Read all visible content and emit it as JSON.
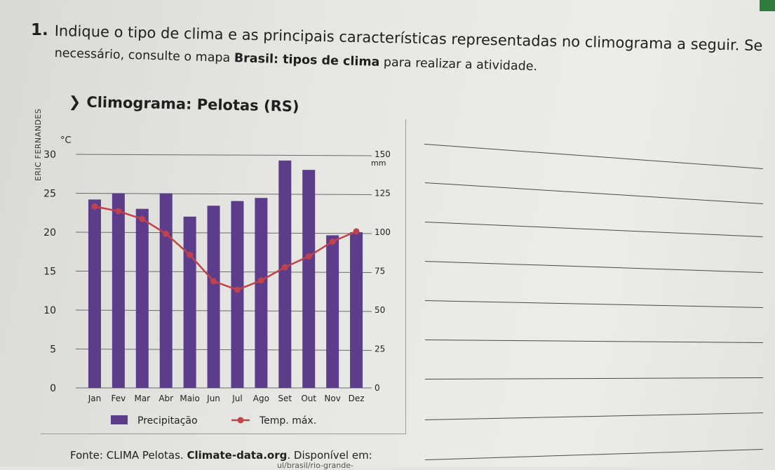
{
  "question": {
    "number": "1.",
    "line1": "Indique o tipo de clima e as principais características representadas no climograma a seguir. Se",
    "line2_pre": "necessário, consulte o mapa ",
    "line2_bold": "Brasil: tipos de clima",
    "line2_post": " para realizar a atividade."
  },
  "chart_title": "Climograma: Pelotas (RS)",
  "photo_credit": "ERIC FERNANDES",
  "source": {
    "prefix": "Fonte: CLIMA Pelotas. ",
    "bold": "Climate-data.org",
    "suffix": ". Disponível em:",
    "cutoff": "ul/brasil/rio-grande-"
  },
  "colors": {
    "bar": "#5b3d8c",
    "line": "#c0434c",
    "grid": "#6b6b6b",
    "accent_tab": "#2e7d3a"
  },
  "chart_data": {
    "type": "bar",
    "title": "Climograma: Pelotas (RS)",
    "categories": [
      "Jan",
      "Fev",
      "Mar",
      "Abr",
      "Maio",
      "Jun",
      "Jul",
      "Ago",
      "Set",
      "Out",
      "Nov",
      "Dez"
    ],
    "left_axis": {
      "unit": "°C",
      "ticks": [
        "0",
        "5",
        "10",
        "15",
        "20",
        "25",
        "30"
      ],
      "ylim": [
        0,
        30
      ]
    },
    "right_axis": {
      "unit": "mm",
      "ticks": [
        "0",
        "25",
        "50",
        "75",
        "100",
        "125",
        "150"
      ],
      "ylim": [
        0,
        150
      ]
    },
    "series": [
      {
        "name": "Precipitação",
        "kind": "bar",
        "axis": "right",
        "values": [
          121,
          125,
          115,
          125,
          110,
          117,
          120,
          122,
          146,
          140,
          98,
          100
        ]
      },
      {
        "name": "Temp. máx.",
        "kind": "line",
        "axis": "left",
        "values": [
          23.3,
          22.7,
          21.7,
          19.8,
          17.1,
          13.7,
          12.6,
          13.8,
          15.5,
          16.9,
          18.8,
          20.1
        ]
      }
    ],
    "legend": [
      "Precipitação",
      "Temp. máx."
    ],
    "legend_position": "bottom",
    "grid": true
  }
}
